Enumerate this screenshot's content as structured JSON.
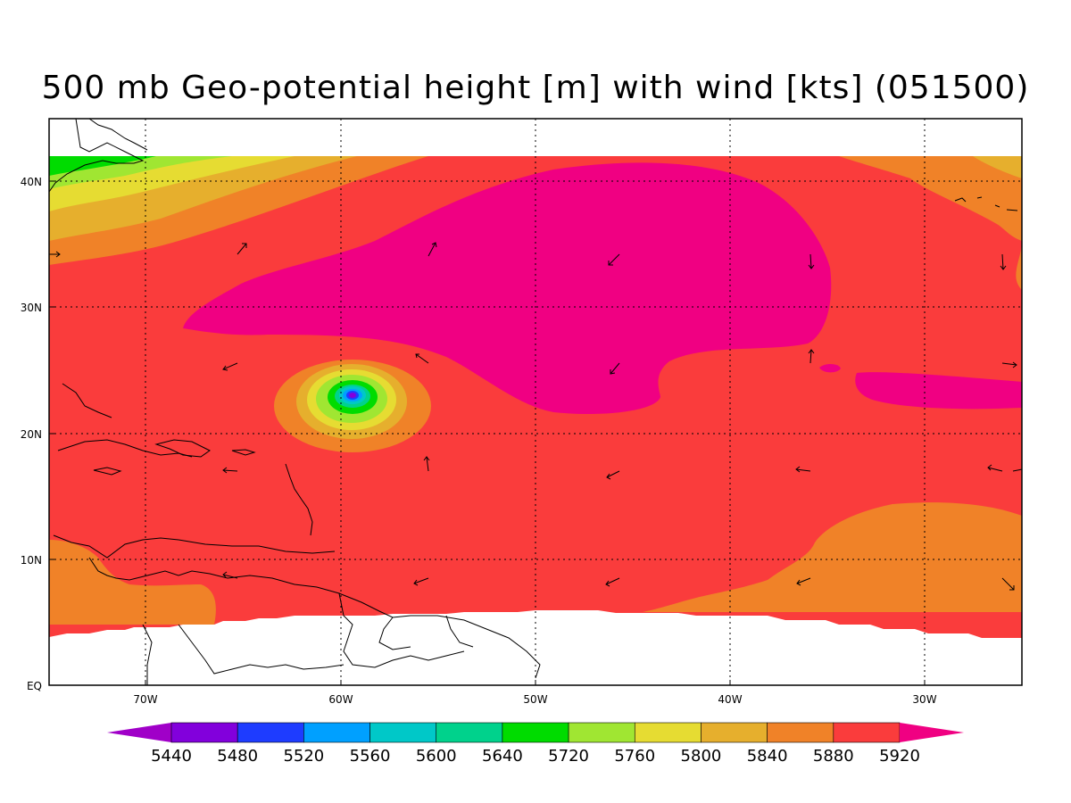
{
  "title": "500 mb Geo-potential height [m] with wind [kts] (051500)",
  "lat_labels": [
    "40N",
    "30N",
    "20N",
    "10N",
    "EQ"
  ],
  "lon_labels": [
    "70W",
    "60W",
    "50W",
    "40W",
    "30W"
  ],
  "colorbar": {
    "labels": [
      "5440",
      "5480",
      "5520",
      "5560",
      "5600",
      "5640",
      "5720",
      "5760",
      "5800",
      "5840",
      "5880",
      "5920"
    ],
    "colors": [
      "#a000c8",
      "#8200dc",
      "#1e3cff",
      "#00a0ff",
      "#00c8c8",
      "#00d28c",
      "#00dc00",
      "#a0e632",
      "#e6dc32",
      "#e6af2d",
      "#f08228",
      "#fa3c3c",
      "#f00082"
    ]
  },
  "fill_colors": {
    "h5880": "#f08228",
    "h5920": "#fa3c3c",
    "h5960": "#f00082",
    "h5840": "#e6af2d",
    "h5800": "#e6dc32",
    "h5760": "#a0e632",
    "h5720": "#00dc00"
  }
}
